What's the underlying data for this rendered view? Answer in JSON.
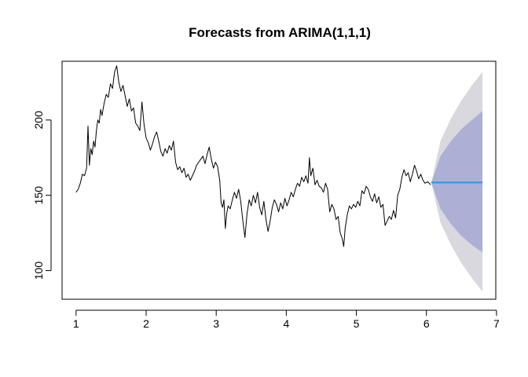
{
  "chart_data": {
    "type": "line",
    "title": "Forecasts from ARIMA(1,1,1)",
    "xlabel": "",
    "ylabel": "",
    "xlim": [
      0.8,
      6.99
    ],
    "ylim": [
      81,
      239
    ],
    "xticks": [
      1,
      2,
      3,
      4,
      5,
      6,
      7
    ],
    "yticks": [
      100,
      150,
      200
    ],
    "grid": false,
    "legend": "none",
    "series": [
      {
        "role": "observed",
        "color": "#000000",
        "points": [
          [
            1.0,
            152
          ],
          [
            1.03,
            154
          ],
          [
            1.06,
            158
          ],
          [
            1.09,
            164
          ],
          [
            1.12,
            163
          ],
          [
            1.15,
            168
          ],
          [
            1.17,
            196
          ],
          [
            1.19,
            170
          ],
          [
            1.21,
            181
          ],
          [
            1.23,
            177
          ],
          [
            1.25,
            186
          ],
          [
            1.27,
            182
          ],
          [
            1.29,
            193
          ],
          [
            1.31,
            200
          ],
          [
            1.33,
            198
          ],
          [
            1.35,
            207
          ],
          [
            1.37,
            203
          ],
          [
            1.4,
            211
          ],
          [
            1.43,
            217
          ],
          [
            1.46,
            215
          ],
          [
            1.49,
            224
          ],
          [
            1.52,
            221
          ],
          [
            1.55,
            232
          ],
          [
            1.58,
            236
          ],
          [
            1.61,
            225
          ],
          [
            1.64,
            219
          ],
          [
            1.67,
            223
          ],
          [
            1.7,
            216
          ],
          [
            1.73,
            209
          ],
          [
            1.76,
            214
          ],
          [
            1.79,
            206
          ],
          [
            1.82,
            208
          ],
          [
            1.85,
            198
          ],
          [
            1.88,
            196
          ],
          [
            1.91,
            193
          ],
          [
            1.94,
            212
          ],
          [
            1.97,
            197
          ],
          [
            2.0,
            188
          ],
          [
            2.03,
            185
          ],
          [
            2.06,
            180
          ],
          [
            2.09,
            184
          ],
          [
            2.12,
            189
          ],
          [
            2.15,
            192
          ],
          [
            2.18,
            186
          ],
          [
            2.21,
            179
          ],
          [
            2.24,
            176
          ],
          [
            2.27,
            181
          ],
          [
            2.3,
            178
          ],
          [
            2.33,
            183
          ],
          [
            2.36,
            180
          ],
          [
            2.39,
            186
          ],
          [
            2.42,
            172
          ],
          [
            2.45,
            167
          ],
          [
            2.48,
            169
          ],
          [
            2.51,
            165
          ],
          [
            2.54,
            168
          ],
          [
            2.57,
            162
          ],
          [
            2.6,
            164
          ],
          [
            2.63,
            160
          ],
          [
            2.66,
            163
          ],
          [
            2.69,
            166
          ],
          [
            2.72,
            170
          ],
          [
            2.75,
            172
          ],
          [
            2.78,
            174
          ],
          [
            2.81,
            176
          ],
          [
            2.84,
            171
          ],
          [
            2.87,
            177
          ],
          [
            2.9,
            182
          ],
          [
            2.93,
            174
          ],
          [
            2.96,
            168
          ],
          [
            2.99,
            172
          ],
          [
            3.02,
            169
          ],
          [
            3.05,
            160
          ],
          [
            3.07,
            145
          ],
          [
            3.09,
            142
          ],
          [
            3.11,
            147
          ],
          [
            3.13,
            128
          ],
          [
            3.15,
            138
          ],
          [
            3.17,
            143
          ],
          [
            3.2,
            141
          ],
          [
            3.23,
            147
          ],
          [
            3.26,
            152
          ],
          [
            3.29,
            148
          ],
          [
            3.32,
            154
          ],
          [
            3.35,
            146
          ],
          [
            3.38,
            133
          ],
          [
            3.41,
            122
          ],
          [
            3.44,
            138
          ],
          [
            3.47,
            147
          ],
          [
            3.5,
            143
          ],
          [
            3.53,
            150
          ],
          [
            3.56,
            145
          ],
          [
            3.59,
            152
          ],
          [
            3.62,
            142
          ],
          [
            3.65,
            137
          ],
          [
            3.68,
            146
          ],
          [
            3.71,
            134
          ],
          [
            3.74,
            126
          ],
          [
            3.77,
            133
          ],
          [
            3.8,
            142
          ],
          [
            3.83,
            147
          ],
          [
            3.86,
            144
          ],
          [
            3.89,
            139
          ],
          [
            3.92,
            145
          ],
          [
            3.95,
            141
          ],
          [
            3.98,
            148
          ],
          [
            4.01,
            143
          ],
          [
            4.04,
            147
          ],
          [
            4.07,
            152
          ],
          [
            4.1,
            149
          ],
          [
            4.13,
            154
          ],
          [
            4.16,
            158
          ],
          [
            4.19,
            156
          ],
          [
            4.22,
            162
          ],
          [
            4.25,
            159
          ],
          [
            4.28,
            163
          ],
          [
            4.31,
            158
          ],
          [
            4.33,
            175
          ],
          [
            4.35,
            163
          ],
          [
            4.38,
            168
          ],
          [
            4.41,
            157
          ],
          [
            4.44,
            160
          ],
          [
            4.47,
            156
          ],
          [
            4.5,
            155
          ],
          [
            4.53,
            152
          ],
          [
            4.56,
            158
          ],
          [
            4.59,
            154
          ],
          [
            4.62,
            139
          ],
          [
            4.65,
            144
          ],
          [
            4.68,
            141
          ],
          [
            4.71,
            134
          ],
          [
            4.74,
            136
          ],
          [
            4.77,
            125
          ],
          [
            4.8,
            121
          ],
          [
            4.82,
            116
          ],
          [
            4.84,
            128
          ],
          [
            4.87,
            137
          ],
          [
            4.9,
            143
          ],
          [
            4.93,
            141
          ],
          [
            4.96,
            144
          ],
          [
            4.99,
            142
          ],
          [
            5.02,
            146
          ],
          [
            5.05,
            143
          ],
          [
            5.08,
            153
          ],
          [
            5.11,
            151
          ],
          [
            5.14,
            156
          ],
          [
            5.17,
            154
          ],
          [
            5.2,
            149
          ],
          [
            5.23,
            146
          ],
          [
            5.26,
            151
          ],
          [
            5.29,
            145
          ],
          [
            5.32,
            149
          ],
          [
            5.35,
            142
          ],
          [
            5.38,
            144
          ],
          [
            5.41,
            130
          ],
          [
            5.44,
            133
          ],
          [
            5.47,
            136
          ],
          [
            5.5,
            134
          ],
          [
            5.53,
            140
          ],
          [
            5.56,
            135
          ],
          [
            5.59,
            150
          ],
          [
            5.62,
            154
          ],
          [
            5.65,
            162
          ],
          [
            5.68,
            167
          ],
          [
            5.71,
            163
          ],
          [
            5.74,
            165
          ],
          [
            5.77,
            159
          ],
          [
            5.8,
            164
          ],
          [
            5.83,
            170
          ],
          [
            5.86,
            166
          ],
          [
            5.89,
            161
          ],
          [
            5.92,
            164
          ],
          [
            5.95,
            160
          ],
          [
            5.98,
            158
          ],
          [
            6.02,
            159
          ],
          [
            6.06,
            157
          ]
        ]
      },
      {
        "role": "forecast",
        "color": "#2297E6",
        "x": [
          6.07,
          6.8
        ],
        "values": [
          158.5,
          158.5
        ]
      }
    ],
    "intervals": [
      {
        "role": "outer-band",
        "color": "#D8D8DE",
        "x": [
          6.07,
          6.2,
          6.35,
          6.5,
          6.65,
          6.8
        ],
        "lower": [
          158.5,
          132,
          117,
          105,
          95,
          86
        ],
        "upper": [
          158.5,
          186,
          201,
          213,
          223,
          232
        ]
      },
      {
        "role": "inner-band",
        "color": "#ADB0D4",
        "x": [
          6.07,
          6.2,
          6.35,
          6.5,
          6.65,
          6.8
        ],
        "lower": [
          158.5,
          141,
          131,
          123,
          117,
          112
        ],
        "upper": [
          158.5,
          176,
          186,
          194,
          200,
          206
        ]
      }
    ]
  }
}
